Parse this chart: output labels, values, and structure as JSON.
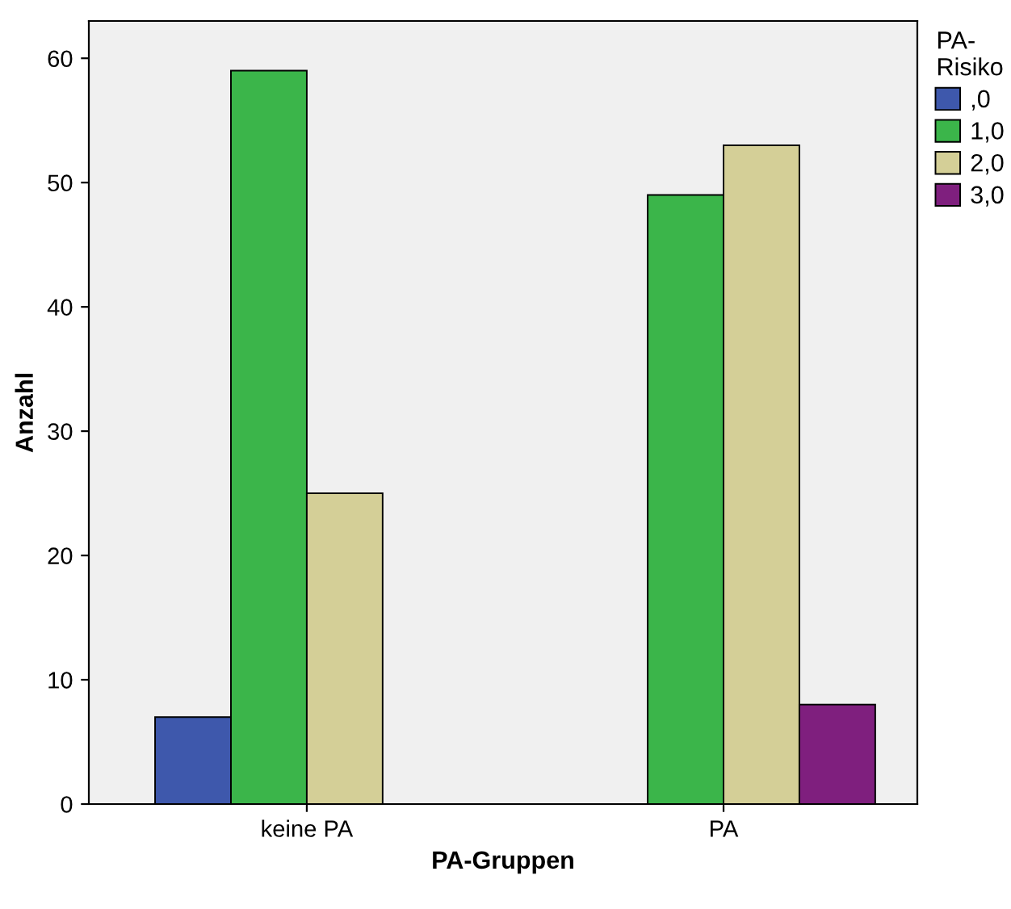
{
  "chart_data": {
    "type": "bar",
    "xlabel": "PA-Gruppen",
    "ylabel": "Anzahl",
    "legend_title": "PA-\nRisiko",
    "categories": [
      "keine PA",
      "PA"
    ],
    "series": [
      {
        "name": ",0",
        "color": "#3e58ac",
        "values": [
          7,
          null
        ]
      },
      {
        "name": "1,0",
        "color": "#3bb54a",
        "values": [
          59,
          49
        ]
      },
      {
        "name": "2,0",
        "color": "#d4cf97",
        "values": [
          25,
          53
        ]
      },
      {
        "name": "3,0",
        "color": "#7f1f7e",
        "values": [
          null,
          8
        ]
      }
    ],
    "ylim": [
      0,
      63
    ],
    "yticks": [
      0,
      10,
      20,
      30,
      40,
      50,
      60
    ],
    "grid": false,
    "legend": "right"
  }
}
